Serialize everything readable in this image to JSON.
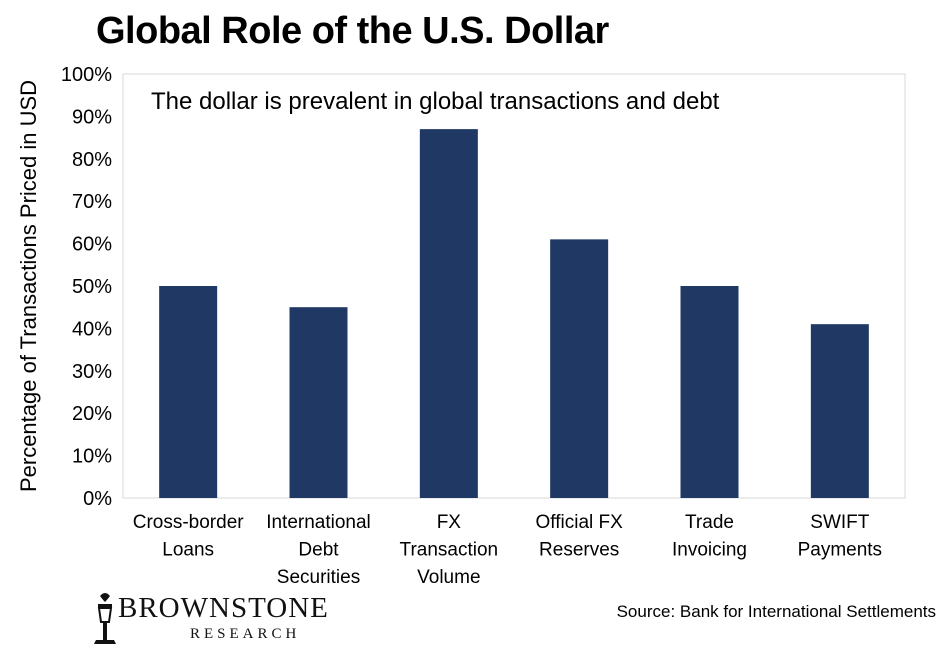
{
  "chart_data": {
    "type": "bar",
    "title": "Global Role of the U.S. Dollar",
    "subtitle": "The dollar is prevalent in global transactions and debt",
    "ylabel": "Percentage of Transactions Priced in USD",
    "xlabel": "",
    "categories": [
      [
        "Cross-border",
        "Loans"
      ],
      [
        "International",
        "Debt",
        "Securities"
      ],
      [
        "FX",
        "Transaction",
        "Volume"
      ],
      [
        "Official FX",
        "Reserves"
      ],
      [
        "Trade",
        "Invoicing"
      ],
      [
        "SWIFT",
        "Payments"
      ]
    ],
    "values": [
      50,
      45,
      87,
      61,
      50,
      41
    ],
    "ylim": [
      0,
      100
    ],
    "yticks": [
      "0%",
      "10%",
      "20%",
      "30%",
      "40%",
      "50%",
      "60%",
      "70%",
      "80%",
      "90%",
      "100%"
    ],
    "grid": false,
    "bar_color": "#1f3864",
    "source": "Source: Bank for International Settlements"
  },
  "branding": {
    "name": "BROWNSTONE",
    "sub": "RESEARCH"
  }
}
